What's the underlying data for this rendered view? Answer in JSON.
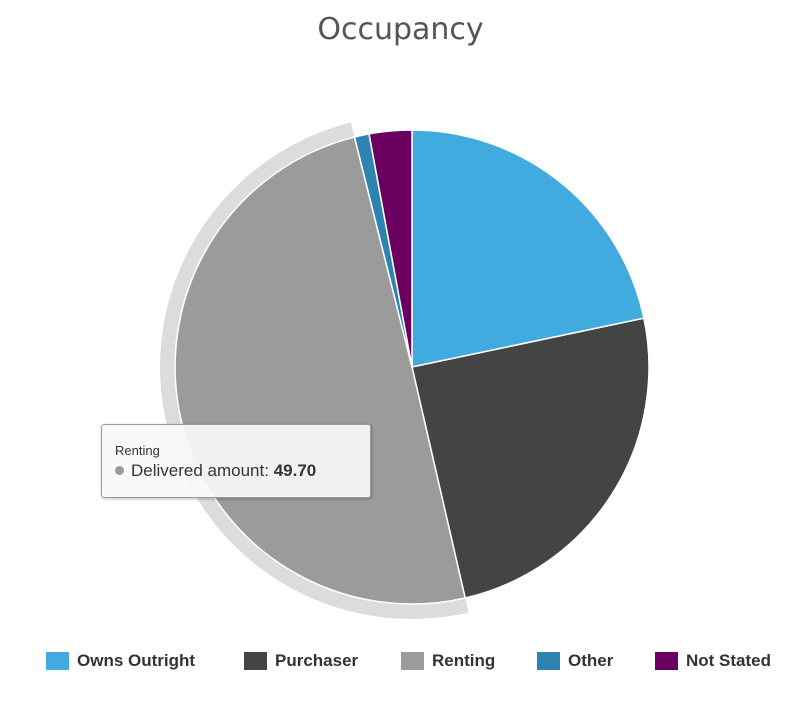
{
  "chart_data": {
    "type": "pie",
    "title": "Occupancy",
    "series_name": "Delivered amount",
    "slices": [
      {
        "name": "Owns Outright",
        "value": 21.7,
        "color": "#41aadf"
      },
      {
        "name": "Purchaser",
        "value": 24.7,
        "color": "#444444"
      },
      {
        "name": "Renting",
        "value": 49.7,
        "color": "#9b9b9b"
      },
      {
        "name": "Other",
        "value": 1.0,
        "color": "#2e84b0"
      },
      {
        "name": "Not Stated",
        "value": 2.9,
        "color": "#6a005f"
      }
    ],
    "hovered_slice": "Renting",
    "legend_placement": "bottom",
    "tooltip": {
      "title": "Renting",
      "label": "Delivered amount",
      "value": "49.70",
      "dot_color": "#9b9b9b"
    }
  }
}
